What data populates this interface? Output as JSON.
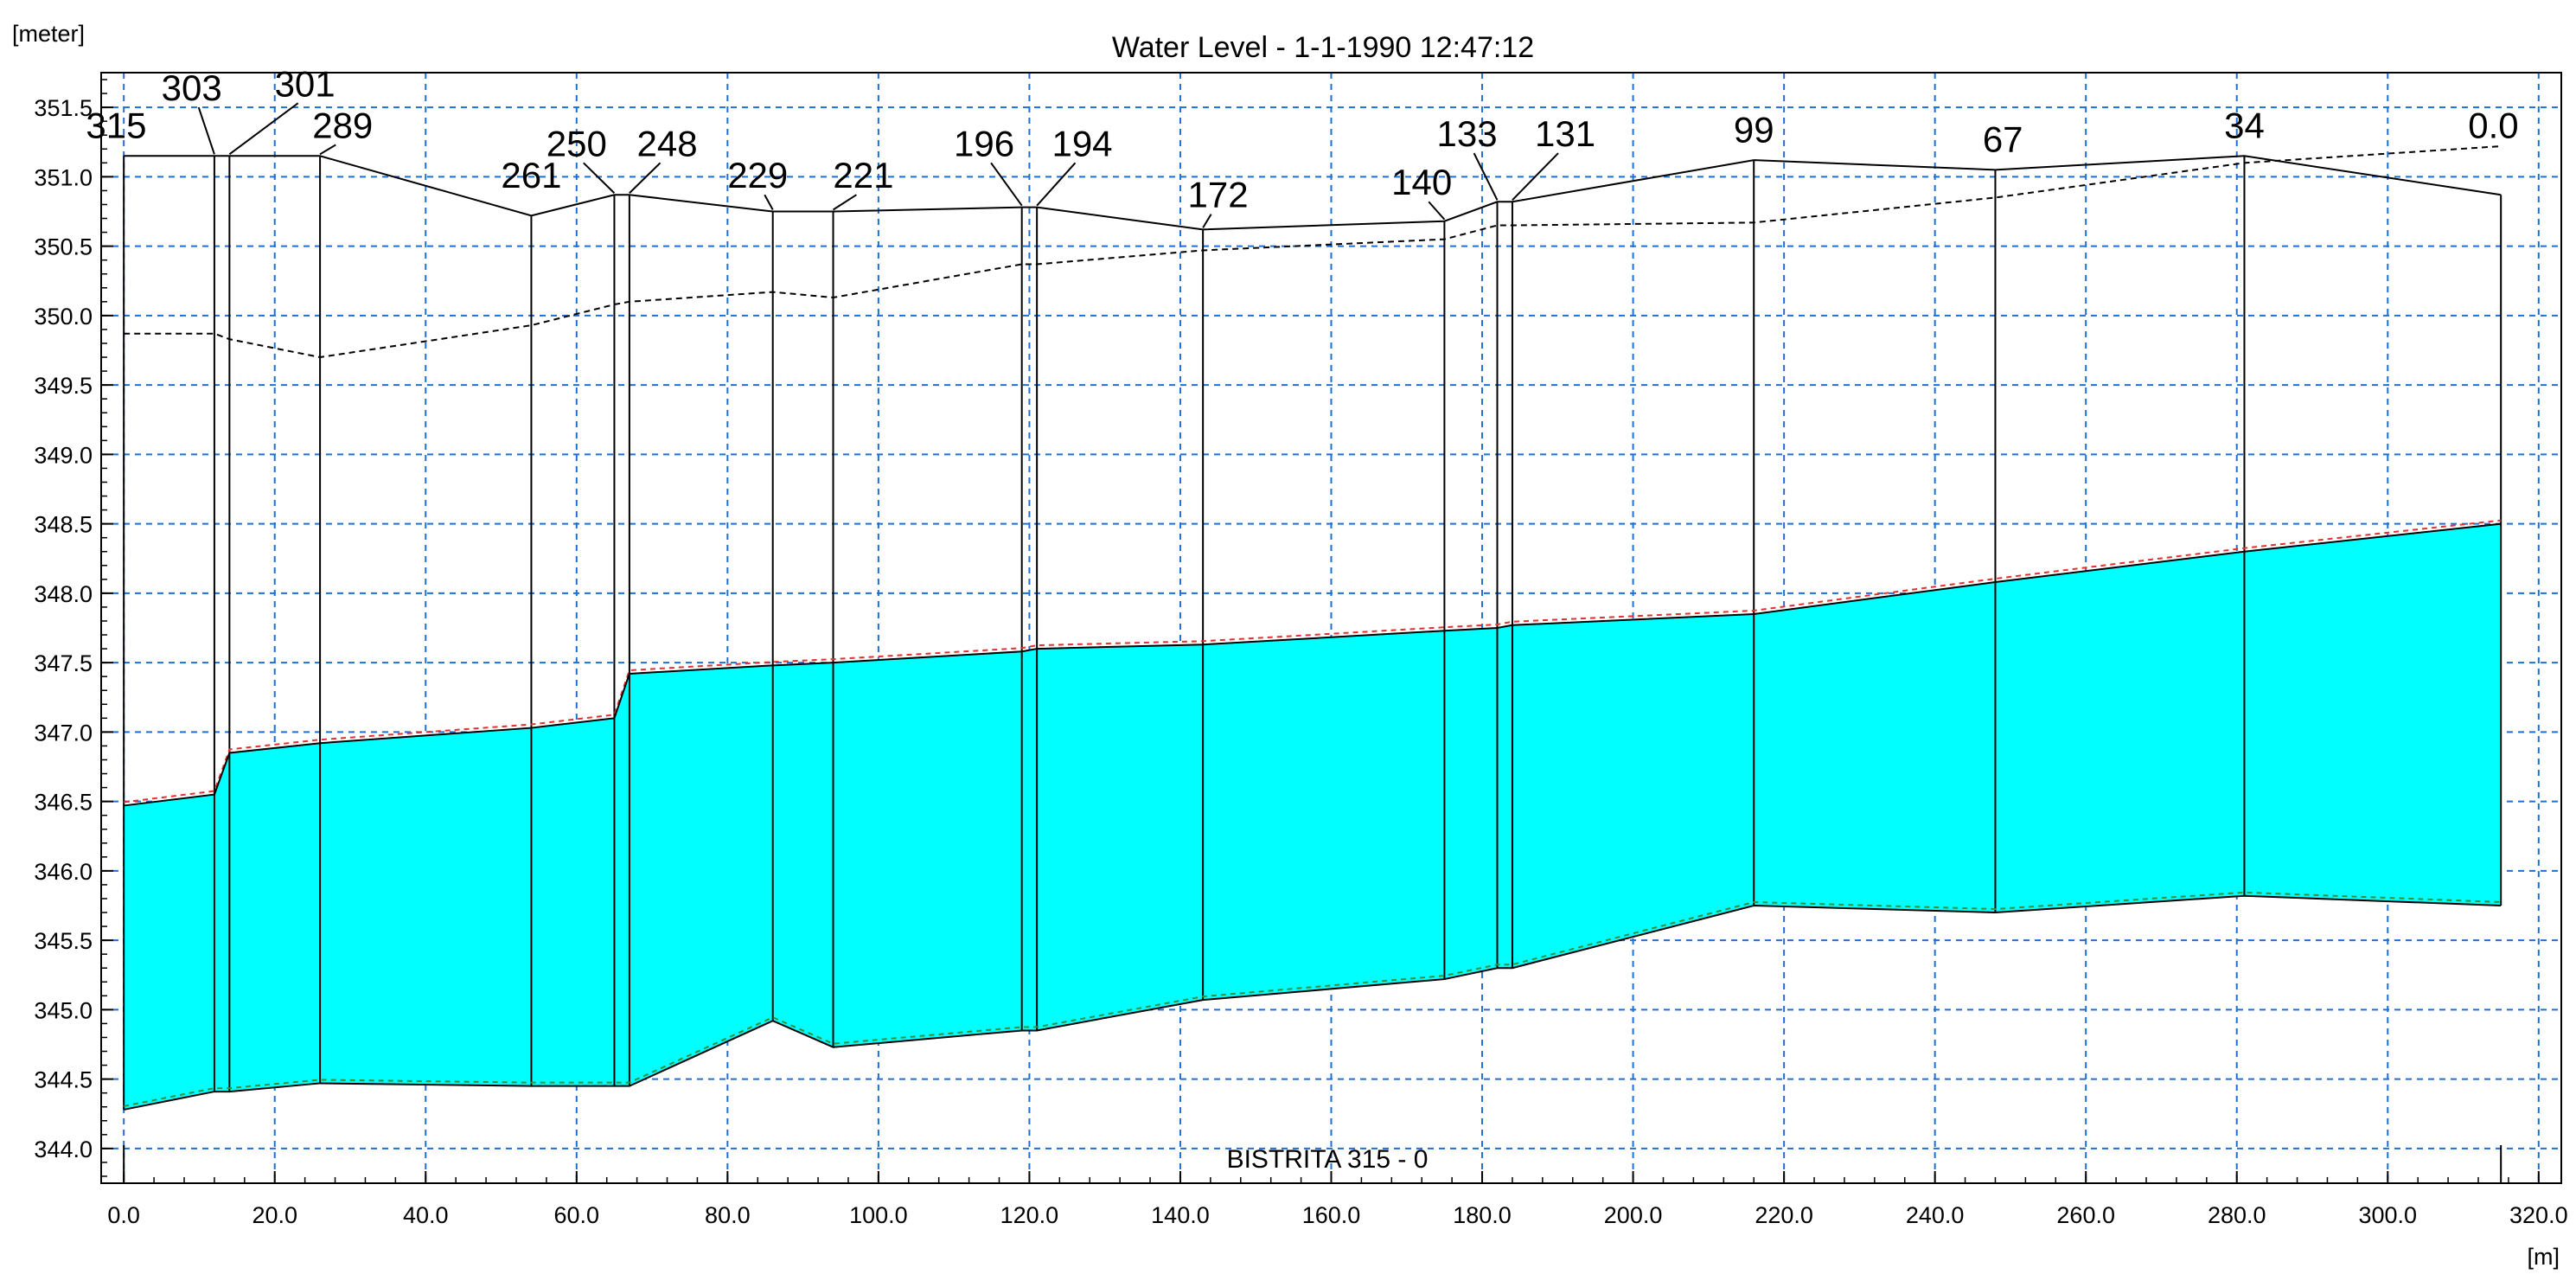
{
  "chart_data": {
    "type": "area",
    "title": "Water Level - 1-1-1990 12:47:12",
    "ylabel": "[meter]",
    "xlabel": "[m]",
    "inner_label": "BISTRITA  315 - 0",
    "xlim": [
      -3,
      323
    ],
    "ylim": [
      343.75,
      351.75
    ],
    "x_ticks": [
      0,
      20,
      40,
      60,
      80,
      100,
      120,
      140,
      160,
      180,
      200,
      220,
      240,
      260,
      280,
      300,
      320
    ],
    "x_tick_labels": [
      "0.0",
      "20.0",
      "40.0",
      "60.0",
      "80.0",
      "100.0",
      "120.0",
      "140.0",
      "160.0",
      "180.0",
      "200.0",
      "220.0",
      "240.0",
      "260.0",
      "280.0",
      "300.0",
      "320.0"
    ],
    "y_ticks": [
      344.0,
      344.5,
      345.0,
      345.5,
      346.0,
      346.5,
      347.0,
      347.5,
      348.0,
      348.5,
      349.0,
      349.5,
      350.0,
      350.5,
      351.0,
      351.5
    ],
    "y_tick_labels": [
      "344.0",
      "344.5",
      "345.0",
      "345.5",
      "346.0",
      "346.5",
      "347.0",
      "347.5",
      "348.0",
      "348.5",
      "349.0",
      "349.5",
      "350.0",
      "350.5",
      "351.0",
      "351.5"
    ],
    "grid": true,
    "colors": {
      "water": "#00ffff",
      "grid": "#1f6fd6",
      "line": "#000000",
      "red_dash": "#e53030",
      "green_dash": "#3a8f3a"
    },
    "sections": [
      {
        "label": "315",
        "x": 0.0,
        "bed": 344.28,
        "water": 346.47,
        "bank": 351.15,
        "label_x": -1,
        "label_y": 351.28
      },
      {
        "label": "303",
        "x": 12.0,
        "bed": 344.41,
        "water": 346.55,
        "bank": 351.15,
        "label_x": 9,
        "label_y": 351.55
      },
      {
        "label": "301",
        "x": 14.0,
        "bed": 344.41,
        "water": 346.85,
        "bank": 351.15,
        "label_x": 24,
        "label_y": 351.58
      },
      {
        "label": "289",
        "x": 26.0,
        "bed": 344.47,
        "water": 346.92,
        "bank": 351.15,
        "label_x": 29,
        "label_y": 351.28
      },
      {
        "label": "261",
        "x": 54.0,
        "bed": 344.45,
        "water": 347.03,
        "bank": 350.72,
        "label_x": 54,
        "label_y": 350.92
      },
      {
        "label": "250",
        "x": 65.0,
        "bed": 344.45,
        "water": 347.1,
        "bank": 350.87,
        "label_x": 60,
        "label_y": 351.15
      },
      {
        "label": "248",
        "x": 67.0,
        "bed": 344.45,
        "water": 347.42,
        "bank": 350.87,
        "label_x": 72,
        "label_y": 351.15
      },
      {
        "label": "229",
        "x": 86.0,
        "bed": 344.92,
        "water": 347.48,
        "bank": 350.75,
        "label_x": 84,
        "label_y": 350.92
      },
      {
        "label": "221",
        "x": 94.0,
        "bed": 344.73,
        "water": 347.5,
        "bank": 350.75,
        "label_x": 98,
        "label_y": 350.92
      },
      {
        "label": "196",
        "x": 119.0,
        "bed": 344.85,
        "water": 347.58,
        "bank": 350.78,
        "label_x": 114,
        "label_y": 351.15
      },
      {
        "label": "194",
        "x": 121.0,
        "bed": 344.85,
        "water": 347.6,
        "bank": 350.78,
        "label_x": 127,
        "label_y": 351.15
      },
      {
        "label": "172",
        "x": 143.0,
        "bed": 345.07,
        "water": 347.63,
        "bank": 350.62,
        "label_x": 145,
        "label_y": 350.78
      },
      {
        "label": "140",
        "x": 175.0,
        "bed": 345.22,
        "water": 347.73,
        "bank": 350.68,
        "label_x": 172,
        "label_y": 350.87
      },
      {
        "label": "133",
        "x": 182.0,
        "bed": 345.3,
        "water": 347.75,
        "bank": 350.82,
        "label_x": 178,
        "label_y": 351.22
      },
      {
        "label": "131",
        "x": 184.0,
        "bed": 345.3,
        "water": 347.77,
        "bank": 350.82,
        "label_x": 191,
        "label_y": 351.22
      },
      {
        "label": "99",
        "x": 216.0,
        "bed": 345.75,
        "water": 347.85,
        "bank": 351.12,
        "label_x": 216,
        "label_y": 351.25
      },
      {
        "label": "67",
        "x": 248.0,
        "bed": 345.7,
        "water": 348.08,
        "bank": 351.05,
        "label_x": 249,
        "label_y": 351.18
      },
      {
        "label": "34",
        "x": 281.0,
        "bed": 345.82,
        "water": 348.3,
        "bank": 351.15,
        "label_x": 281,
        "label_y": 351.28
      },
      {
        "label": "0.0",
        "x": 315.0,
        "bed": 345.75,
        "water": 348.5,
        "bank": 350.87,
        "label_x": 314,
        "label_y": 351.28
      }
    ],
    "dashed_top": [
      [
        0.0,
        349.87
      ],
      [
        12.0,
        349.87
      ],
      [
        14.0,
        349.83
      ],
      [
        26.0,
        349.7
      ],
      [
        54.0,
        349.93
      ],
      [
        65.0,
        350.08
      ],
      [
        67.0,
        350.1
      ],
      [
        86.0,
        350.17
      ],
      [
        94.0,
        350.13
      ],
      [
        119.0,
        350.37
      ],
      [
        121.0,
        350.37
      ],
      [
        143.0,
        350.47
      ],
      [
        175.0,
        350.55
      ],
      [
        182.0,
        350.65
      ],
      [
        184.0,
        350.65
      ],
      [
        216.0,
        350.67
      ],
      [
        248.0,
        350.85
      ],
      [
        281.0,
        351.1
      ],
      [
        315.0,
        351.22
      ]
    ],
    "bottom_marker_x": 315.0
  }
}
